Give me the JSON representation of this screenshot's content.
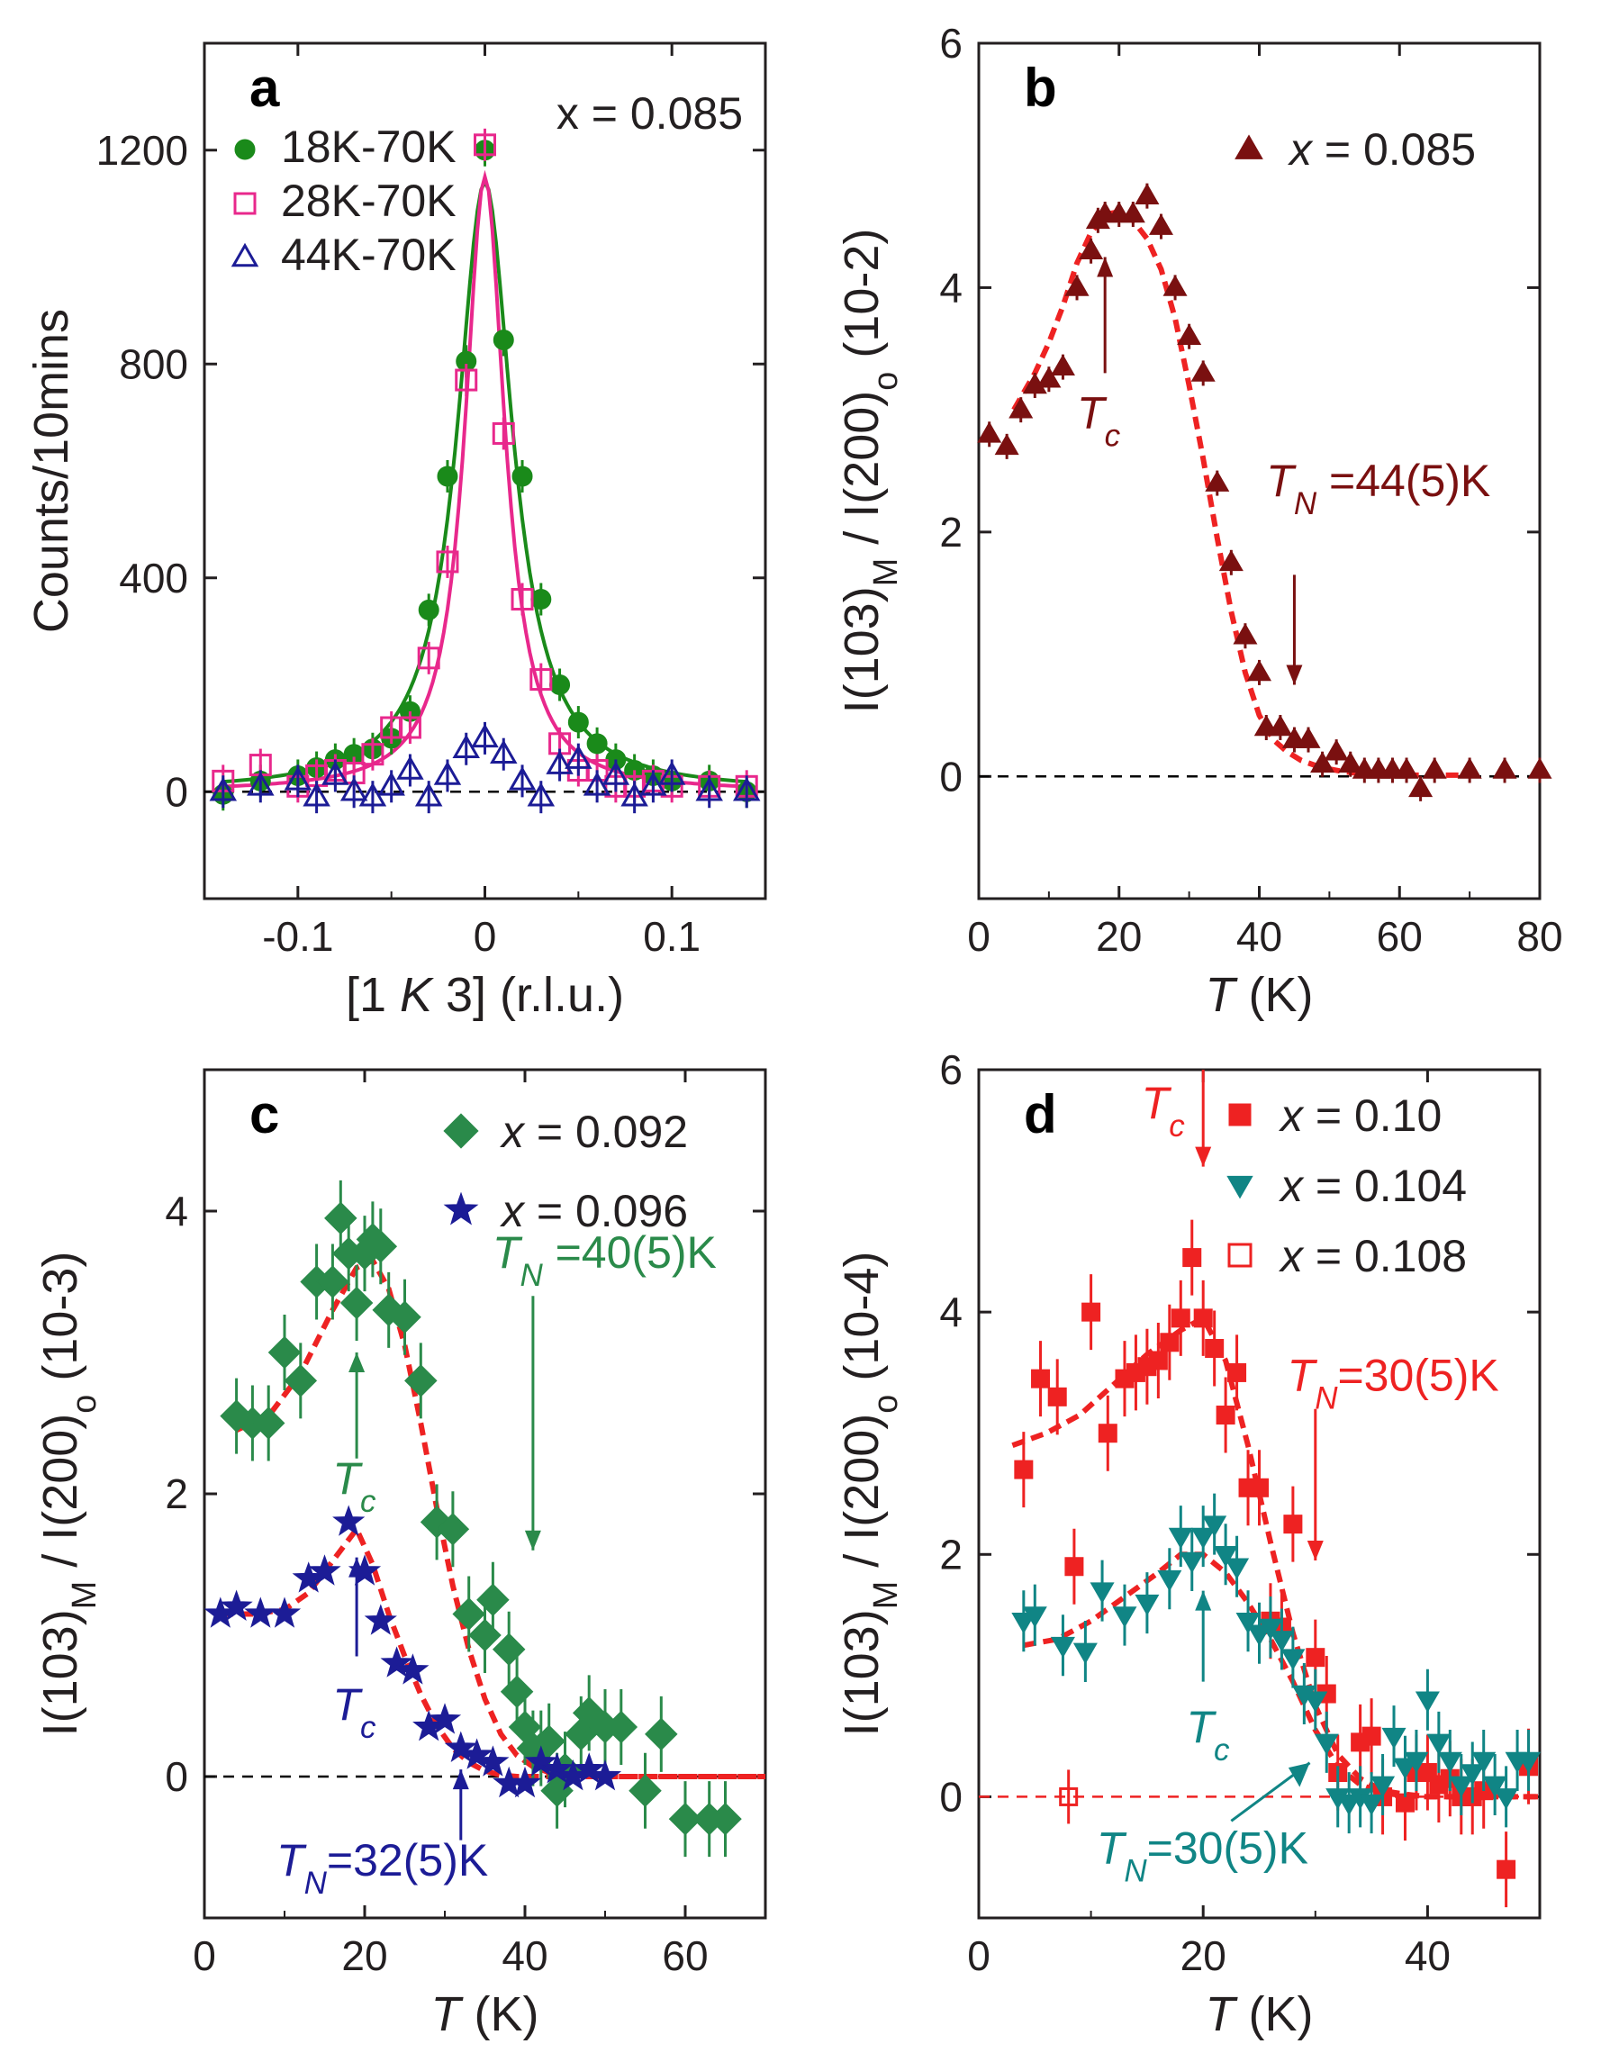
{
  "colors": {
    "green": "#1a8a1a",
    "magenta": "#e8288c",
    "navy": "#1c1c96",
    "maroon": "#7a1010",
    "red": "#ee2222",
    "teal": "#108585",
    "mgreen": "#2a8a4a",
    "dashed_fit": "#ee2222"
  },
  "chart_data": [
    {
      "panel": "a",
      "type": "scatter",
      "annotation": "x = 0.085",
      "xlabel": "[1 K 3] (r.l.u.)",
      "ylabel": "Counts/10mins",
      "xlim": [
        -0.15,
        0.15
      ],
      "ylim": [
        -200,
        1400
      ],
      "xticks": [
        -0.1,
        0,
        0.1
      ],
      "xtick_labels": [
        "-0.1",
        "0",
        "0.1"
      ],
      "yticks": [
        0,
        400,
        800,
        1200
      ],
      "ytick_labels": [
        "0",
        "400",
        "800",
        "1200"
      ],
      "grid": false,
      "legend_position": "top-left",
      "series": [
        {
          "name": "18K-70K",
          "marker": "circle-filled",
          "color": "green",
          "x": [
            -0.14,
            -0.12,
            -0.1,
            -0.09,
            -0.08,
            -0.07,
            -0.06,
            -0.05,
            -0.04,
            -0.03,
            -0.02,
            -0.01,
            0.0,
            0.01,
            0.02,
            0.03,
            0.04,
            0.05,
            0.06,
            0.07,
            0.08,
            0.09,
            0.1,
            0.12,
            0.14
          ],
          "y": [
            -5,
            20,
            30,
            45,
            60,
            70,
            80,
            100,
            150,
            340,
            590,
            805,
            1200,
            845,
            590,
            360,
            200,
            130,
            90,
            60,
            40,
            30,
            20,
            20,
            0
          ]
        },
        {
          "name": "28K-70K",
          "marker": "square-open",
          "color": "magenta",
          "x": [
            -0.14,
            -0.12,
            -0.1,
            -0.09,
            -0.08,
            -0.07,
            -0.06,
            -0.05,
            -0.04,
            -0.03,
            -0.02,
            -0.01,
            0.0,
            0.01,
            0.02,
            0.03,
            0.04,
            0.05,
            0.06,
            0.07,
            0.08,
            0.09,
            0.1,
            0.12,
            0.14
          ],
          "y": [
            20,
            50,
            10,
            30,
            40,
            35,
            70,
            120,
            120,
            250,
            430,
            770,
            1210,
            670,
            360,
            210,
            90,
            40,
            40,
            10,
            10,
            20,
            10,
            10,
            10
          ]
        },
        {
          "name": "44K-70K",
          "marker": "triangle-open",
          "color": "navy",
          "x": [
            -0.14,
            -0.12,
            -0.1,
            -0.09,
            -0.08,
            -0.07,
            -0.06,
            -0.05,
            -0.04,
            -0.03,
            -0.02,
            -0.01,
            0.0,
            0.01,
            0.02,
            0.03,
            0.04,
            0.05,
            0.06,
            0.07,
            0.08,
            0.09,
            0.1,
            0.12,
            0.14
          ],
          "y": [
            0,
            10,
            20,
            -10,
            30,
            0,
            -10,
            10,
            40,
            -10,
            30,
            80,
            100,
            70,
            20,
            -10,
            50,
            60,
            10,
            30,
            -10,
            10,
            30,
            0,
            0
          ]
        }
      ],
      "fits": [
        {
          "series": "18K-70K",
          "shape": "lorentzian",
          "center": 0.0,
          "amplitude": 1140,
          "hwhm": 0.018,
          "color": "green"
        },
        {
          "series": "28K-70K",
          "shape": "lorentzian",
          "center": 0.0,
          "amplitude": 1150,
          "hwhm": 0.013,
          "color": "magenta"
        }
      ]
    },
    {
      "panel": "b",
      "type": "scatter",
      "xlabel": "T (K)",
      "ylabel": "I(103)M / I(200)o (10-2)",
      "xlim": [
        0,
        80
      ],
      "ylim": [
        -1,
        6
      ],
      "xticks": [
        0,
        20,
        40,
        60,
        80
      ],
      "xtick_labels": [
        "0",
        "20",
        "40",
        "60",
        "80"
      ],
      "yticks": [
        0,
        2,
        4,
        6
      ],
      "ytick_labels": [
        "0",
        "2",
        "4",
        "6"
      ],
      "grid": false,
      "legend_position": "top-right",
      "series": [
        {
          "name": "x = 0.085",
          "marker": "triangle-filled",
          "color": "maroon",
          "x": [
            1.5,
            4,
            6,
            8,
            10,
            12,
            14,
            16,
            17,
            18,
            20,
            22,
            24,
            26,
            28,
            30,
            32,
            34,
            36,
            38,
            40,
            41,
            43,
            45,
            47,
            49,
            51,
            53,
            55,
            57,
            59,
            61,
            63,
            65,
            70,
            75,
            80
          ],
          "y": [
            2.8,
            2.7,
            3.0,
            3.2,
            3.25,
            3.35,
            4.0,
            4.3,
            4.55,
            4.6,
            4.6,
            4.6,
            4.75,
            4.5,
            4.0,
            3.6,
            3.3,
            2.4,
            1.75,
            1.15,
            0.85,
            0.4,
            0.4,
            0.3,
            0.3,
            0.1,
            0.2,
            0.1,
            0.05,
            0.05,
            0.05,
            0.05,
            -0.1,
            0.05,
            0.05,
            0.05,
            0.05
          ]
        }
      ],
      "fit_curve": {
        "style": "dashed",
        "color": "dashed_fit",
        "x": [
          5,
          8,
          10,
          12,
          14,
          16,
          18,
          20,
          22,
          24,
          26,
          28,
          30,
          32,
          34,
          36,
          38,
          40,
          42,
          44,
          46,
          48,
          50,
          52,
          55,
          60,
          65,
          70
        ],
        "y": [
          3.0,
          3.3,
          3.55,
          3.85,
          4.2,
          4.45,
          4.6,
          4.62,
          4.55,
          4.4,
          4.15,
          3.75,
          3.2,
          2.6,
          1.95,
          1.35,
          0.85,
          0.5,
          0.3,
          0.2,
          0.13,
          0.09,
          0.06,
          0.04,
          0.02,
          0.01,
          0.01,
          0.01
        ]
      },
      "baseline": 0,
      "annotations": [
        {
          "text": "T",
          "sub": "c",
          "x": 18,
          "arrow": "up"
        },
        {
          "text": "T",
          "sub": "N",
          "rest": " =44(5)K",
          "x": 45,
          "arrow": "down"
        }
      ]
    },
    {
      "panel": "c",
      "type": "scatter",
      "xlabel": "T (K)",
      "ylabel": "I(103)M / I(200)o (10-3)",
      "xlim": [
        0,
        70
      ],
      "ylim": [
        -1,
        5
      ],
      "xticks": [
        0,
        20,
        40,
        60
      ],
      "xtick_labels": [
        "0",
        "20",
        "40",
        "60"
      ],
      "yticks": [
        0,
        2,
        4
      ],
      "ytick_labels": [
        "0",
        "2",
        "4"
      ],
      "grid": false,
      "legend_position": "top-right",
      "series": [
        {
          "name": "x = 0.092",
          "marker": "diamond-filled",
          "color": "mgreen",
          "x": [
            4,
            6,
            8,
            10,
            12,
            14,
            16,
            17,
            18,
            19,
            20,
            21,
            22,
            23,
            25,
            27,
            29,
            31,
            33,
            35,
            36,
            38,
            39,
            40,
            41,
            42,
            43,
            44,
            45,
            47,
            48,
            50,
            52,
            55,
            57,
            60,
            63,
            65
          ],
          "y": [
            2.55,
            2.5,
            2.5,
            3.0,
            2.8,
            3.5,
            3.5,
            3.95,
            3.7,
            3.35,
            3.7,
            3.8,
            3.75,
            3.3,
            3.25,
            2.8,
            1.8,
            1.75,
            1.15,
            1.0,
            1.25,
            0.9,
            0.6,
            0.35,
            0.2,
            0.2,
            0.25,
            -0.1,
            0.05,
            0.3,
            0.45,
            0.35,
            0.35,
            -0.1,
            0.3,
            -0.3,
            -0.3,
            -0.3
          ]
        },
        {
          "name": "x = 0.096",
          "marker": "star-filled",
          "color": "navy",
          "x": [
            2,
            4,
            7,
            10,
            13,
            15,
            18,
            20,
            22,
            24,
            26,
            28,
            30,
            32,
            34,
            36,
            38,
            40,
            42,
            44,
            46,
            48,
            50
          ],
          "y": [
            1.15,
            1.2,
            1.15,
            1.15,
            1.4,
            1.45,
            1.8,
            1.45,
            1.1,
            0.8,
            0.75,
            0.35,
            0.4,
            0.2,
            0.15,
            0.1,
            -0.05,
            -0.05,
            0.1,
            0.05,
            0.0,
            0.05,
            0.0
          ]
        }
      ],
      "fit_curves": [
        {
          "series": "x = 0.092",
          "style": "dashed",
          "color": "dashed_fit",
          "x": [
            4,
            8,
            12,
            16,
            19,
            21,
            23,
            25,
            27,
            29,
            31,
            33,
            35,
            37,
            39,
            41,
            43,
            45,
            50,
            55,
            60,
            65,
            70
          ],
          "y": [
            2.45,
            2.55,
            2.85,
            3.3,
            3.6,
            3.65,
            3.45,
            3.05,
            2.5,
            1.9,
            1.35,
            0.9,
            0.55,
            0.3,
            0.15,
            0.07,
            0.03,
            0.01,
            0.0,
            0.0,
            0.0,
            0.0,
            0.0
          ]
        },
        {
          "series": "x = 0.096",
          "style": "dashed",
          "color": "dashed_fit",
          "x": [
            2,
            6,
            10,
            13,
            15,
            17,
            19,
            21,
            23,
            25,
            27,
            29,
            31,
            33,
            35,
            37,
            39,
            41,
            45,
            50,
            55,
            60,
            65,
            70
          ],
          "y": [
            1.15,
            1.15,
            1.18,
            1.3,
            1.45,
            1.6,
            1.75,
            1.5,
            1.15,
            0.85,
            0.58,
            0.36,
            0.2,
            0.1,
            0.04,
            0.01,
            0.0,
            0.0,
            0.0,
            0.0,
            0.0,
            0.0,
            0.0,
            0.0
          ]
        }
      ],
      "baseline": 0,
      "annotations": [
        {
          "text": "T",
          "sub": "c",
          "x": 19,
          "color": "mgreen",
          "arrow": "up"
        },
        {
          "text": "T",
          "sub": "N",
          "rest": " =40(5)K",
          "x": 41,
          "color": "mgreen",
          "arrow": "down"
        },
        {
          "text": "T",
          "sub": "c",
          "x": 19,
          "color": "navy",
          "arrow": "up"
        },
        {
          "text": "T",
          "sub": "N",
          "rest": "=32(5)K",
          "x": 32,
          "color": "navy",
          "arrow": "up"
        }
      ]
    },
    {
      "panel": "d",
      "type": "scatter",
      "xlabel": "T (K)",
      "ylabel": "I(103)M / I(200)o (10-4)",
      "xlim": [
        0,
        50
      ],
      "ylim": [
        -1,
        6
      ],
      "xticks": [
        0,
        20,
        40
      ],
      "xtick_labels": [
        "0",
        "20",
        "40"
      ],
      "yticks": [
        0,
        2,
        4,
        6
      ],
      "ytick_labels": [
        "0",
        "2",
        "4",
        "6"
      ],
      "grid": false,
      "legend_position": "top-right",
      "series": [
        {
          "name": "x = 0.10",
          "marker": "square-filled",
          "color": "red",
          "x": [
            4,
            5.5,
            7,
            8.5,
            10,
            11.5,
            13,
            14,
            15,
            16,
            17,
            18,
            19,
            20,
            21,
            22,
            23,
            24,
            25,
            26,
            27,
            28,
            30,
            31,
            32,
            34,
            35,
            36,
            38,
            39,
            40,
            41,
            42,
            43,
            44,
            45,
            47,
            49
          ],
          "y": [
            2.7,
            3.45,
            3.3,
            1.9,
            4.0,
            3.0,
            3.45,
            3.5,
            3.55,
            3.6,
            3.75,
            3.95,
            4.45,
            3.95,
            3.7,
            3.15,
            3.5,
            2.55,
            2.55,
            1.45,
            1.4,
            2.25,
            1.15,
            0.85,
            0.2,
            0.45,
            0.5,
            0.0,
            -0.05,
            0.2,
            0.2,
            0.1,
            0.15,
            0.0,
            0.0,
            0.05,
            -0.6,
            0.25
          ]
        },
        {
          "name": "x = 0.104",
          "marker": "triangle-down-filled",
          "color": "teal",
          "x": [
            4,
            5,
            7.5,
            9.5,
            11,
            13,
            15,
            17,
            18,
            19,
            20,
            21,
            22,
            23,
            24,
            25,
            26,
            27,
            28,
            29,
            30,
            31,
            32,
            33,
            34,
            35,
            36,
            37,
            38,
            39,
            40,
            41,
            42,
            43,
            44,
            45,
            46,
            47,
            48,
            49
          ],
          "y": [
            1.45,
            1.5,
            1.25,
            1.2,
            1.7,
            1.5,
            1.6,
            1.8,
            2.15,
            1.95,
            2.15,
            2.25,
            2.0,
            1.9,
            1.45,
            1.35,
            1.4,
            1.3,
            1.15,
            0.85,
            0.8,
            0.45,
            0.0,
            -0.05,
            0.0,
            -0.05,
            0.1,
            0.5,
            0.25,
            0.3,
            0.8,
            0.45,
            0.3,
            0.1,
            0.2,
            0.3,
            0.1,
            0.0,
            0.3,
            0.3
          ]
        },
        {
          "name": "x = 0.108",
          "marker": "square-open",
          "color": "red",
          "x": [
            8
          ],
          "y": [
            0.0
          ]
        }
      ],
      "fit_curves": [
        {
          "series": "x = 0.10",
          "style": "dashed",
          "color": "dashed_fit",
          "x": [
            3,
            6,
            9,
            12,
            15,
            18,
            20,
            22,
            24,
            26,
            28,
            30,
            32,
            34,
            36,
            38,
            40,
            45,
            50
          ],
          "y": [
            2.9,
            3.0,
            3.15,
            3.4,
            3.65,
            3.85,
            3.95,
            3.6,
            2.9,
            2.1,
            1.35,
            0.75,
            0.35,
            0.15,
            0.05,
            0.02,
            0.0,
            0.0,
            0.0
          ]
        },
        {
          "series": "x = 0.104",
          "style": "dashed",
          "color": "dashed_fit",
          "x": [
            4,
            7,
            10,
            13,
            16,
            18,
            20,
            22,
            24,
            26,
            28,
            30,
            32,
            34,
            36,
            38,
            40,
            45,
            50
          ],
          "y": [
            1.25,
            1.3,
            1.45,
            1.65,
            1.85,
            2.0,
            2.0,
            1.85,
            1.6,
            1.3,
            0.95,
            0.55,
            0.25,
            0.1,
            0.03,
            0.01,
            0.0,
            0.0,
            0.0
          ]
        }
      ],
      "baseline": 0,
      "annotations": [
        {
          "text": "T",
          "sub": "c",
          "x": 20,
          "color": "red",
          "arrow": "down"
        },
        {
          "text": "T",
          "sub": "N",
          "rest": "=30(5)K",
          "x": 30,
          "color": "red",
          "arrow": "down"
        },
        {
          "text": "T",
          "sub": "c",
          "x": 20,
          "color": "teal",
          "arrow": "up"
        },
        {
          "text": "T",
          "sub": "N",
          "rest": "=30(5)K",
          "x": 30,
          "color": "teal",
          "arrow": "diagonal"
        }
      ]
    }
  ]
}
